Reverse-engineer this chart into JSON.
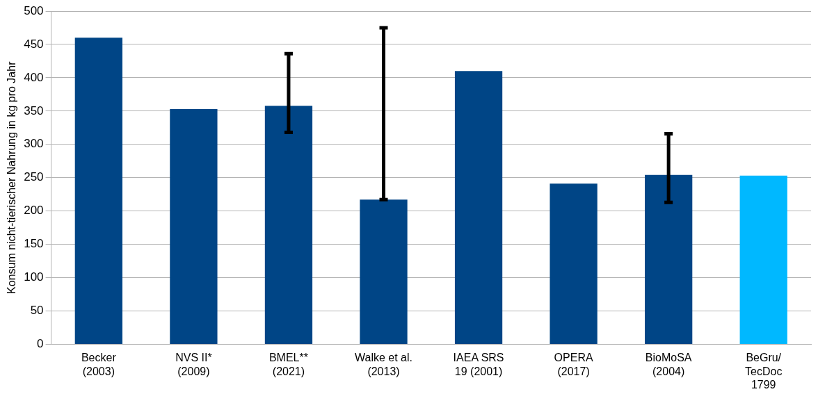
{
  "chart_data": {
    "type": "bar",
    "ylabel": "Konsum nicht-tierischer Nahrung in kg pro Jahr",
    "categories": [
      "Becker\n(2003)",
      "NVS II*\n(2009)",
      "BMEL**\n(2021)",
      "Walke et al.\n(2013)",
      "IAEA SRS\n19 (2001)",
      "OPERA\n(2017)",
      "BioMoSA\n(2004)",
      "BeGru/\nTecDoc\n1799"
    ],
    "values": [
      460,
      353,
      358,
      217,
      410,
      241,
      254,
      253
    ],
    "colors": [
      "#004586",
      "#004586",
      "#004586",
      "#004586",
      "#004586",
      "#004586",
      "#004586",
      "#00b8ff"
    ],
    "errors": [
      null,
      null,
      [
        318,
        436
      ],
      [
        217,
        475
      ],
      null,
      null,
      [
        213,
        316
      ],
      null
    ],
    "ylim": [
      0,
      500
    ],
    "yticks": [
      0,
      50,
      100,
      150,
      200,
      250,
      300,
      350,
      400,
      450,
      500
    ],
    "grid": "y",
    "legend": false
  }
}
